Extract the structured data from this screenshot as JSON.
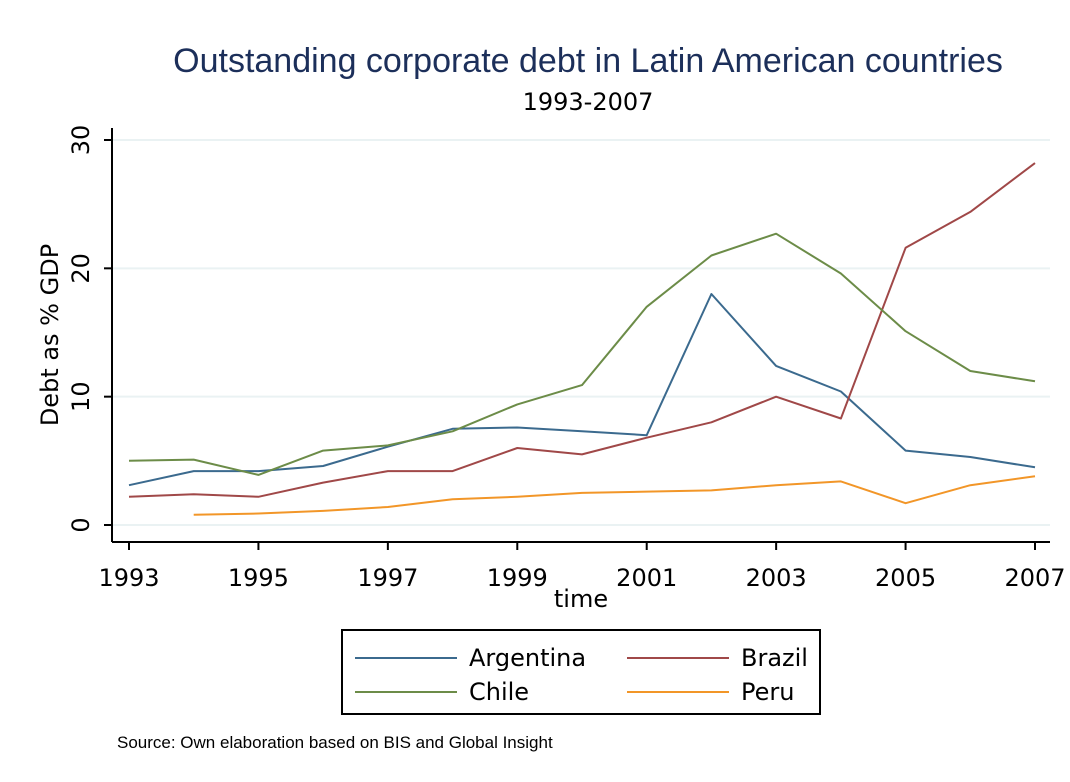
{
  "chart_data": {
    "type": "line",
    "title": "Outstanding corporate debt in Latin American countries",
    "subtitle": "1993-2007",
    "xlabel": "time",
    "ylabel": "Debt as % GDP",
    "xlim": [
      1993,
      2007
    ],
    "ylim": [
      0,
      30
    ],
    "xticks": [
      1993,
      1995,
      1997,
      1999,
      2001,
      2003,
      2005,
      2007
    ],
    "yticks": [
      0,
      10,
      20,
      30
    ],
    "grid": true,
    "legend_position": "bottom",
    "series": [
      {
        "name": "Argentina",
        "color": "#3b6a8e",
        "x": [
          1993,
          1994,
          1995,
          1996,
          1997,
          1998,
          1999,
          2000,
          2001,
          2002,
          2003,
          2004,
          2005,
          2006,
          2007
        ],
        "values": [
          3.1,
          4.2,
          4.2,
          4.6,
          6.1,
          7.5,
          7.6,
          7.3,
          7.0,
          18.0,
          12.4,
          10.4,
          5.8,
          5.3,
          4.5
        ]
      },
      {
        "name": "Brazil",
        "color": "#a04848",
        "x": [
          1993,
          1994,
          1995,
          1996,
          1997,
          1998,
          1999,
          2000,
          2001,
          2002,
          2003,
          2004,
          2005,
          2006,
          2007
        ],
        "values": [
          2.2,
          2.4,
          2.2,
          3.3,
          4.2,
          4.2,
          6.0,
          5.5,
          6.8,
          8.0,
          10.0,
          8.3,
          21.6,
          24.4,
          28.2
        ]
      },
      {
        "name": "Chile",
        "color": "#6c8c48",
        "x": [
          1993,
          1994,
          1995,
          1996,
          1997,
          1998,
          1999,
          2000,
          2001,
          2002,
          2003,
          2004,
          2005,
          2006,
          2007
        ],
        "values": [
          5.0,
          5.1,
          3.9,
          5.8,
          6.2,
          7.3,
          9.4,
          10.9,
          17.0,
          21.0,
          22.7,
          19.6,
          15.1,
          12.0,
          11.2
        ]
      },
      {
        "name": "Peru",
        "color": "#f29628",
        "x": [
          1994,
          1995,
          1996,
          1997,
          1998,
          1999,
          2000,
          2001,
          2002,
          2003,
          2004,
          2005,
          2006,
          2007
        ],
        "values": [
          0.8,
          0.9,
          1.1,
          1.4,
          2.0,
          2.2,
          2.5,
          2.6,
          2.7,
          3.1,
          3.4,
          1.7,
          3.1,
          3.8
        ]
      }
    ],
    "source_note": "Source: Own elaboration based on BIS and Global Insight"
  },
  "colors": {
    "background": "#ffffff",
    "plot_background": "#ffffff",
    "grid": "#eaf2f3",
    "title": "#1c2f5a"
  }
}
